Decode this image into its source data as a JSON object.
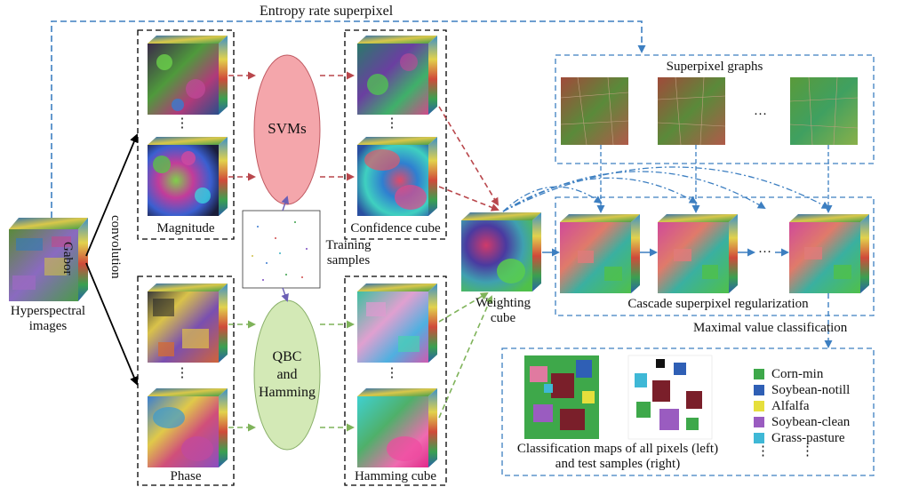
{
  "labels": {
    "entropy": "Entropy rate superpixel",
    "gabor_1": "Gabor",
    "gabor_2": "convolution",
    "hyper_1": "Hyperspectral",
    "hyper_2": "images",
    "magnitude": "Magnitude",
    "phase": "Phase",
    "svms": "SVMs",
    "qbc_1": "QBC",
    "qbc_2": "and",
    "qbc_3": "Hamming",
    "training_1": "Training",
    "training_2": "samples",
    "confidence": "Confidence cube",
    "hamming_cube": "Hamming cube",
    "weighting_1": "Weighting",
    "weighting_2": "cube",
    "superpixel_graphs": "Superpixel graphs",
    "cascade": "Cascade superpixel regularization",
    "maximal": "Maximal value classification",
    "classmaps_1": "Classification maps of all pixels (left)",
    "classmaps_2": "and test samples (right)",
    "dots_v": "⋮",
    "ellipsis": "…"
  },
  "legend": [
    {
      "label": "Corn-min",
      "color": "#3ea84a"
    },
    {
      "label": "Soybean-notill",
      "color": "#2f5fb5"
    },
    {
      "label": "Alfalfa",
      "color": "#e6df3c"
    },
    {
      "label": "Soybean-clean",
      "color": "#9a5cc0"
    },
    {
      "label": "Grass-pasture",
      "color": "#3fb8d6"
    }
  ],
  "colors": {
    "blue_arrow": "#3d7fc1",
    "red_arrow": "#b9474c",
    "green_arrow": "#7fb35a",
    "svm_fill": "#f4a6ab",
    "qbc_fill": "#d3e9b6"
  }
}
